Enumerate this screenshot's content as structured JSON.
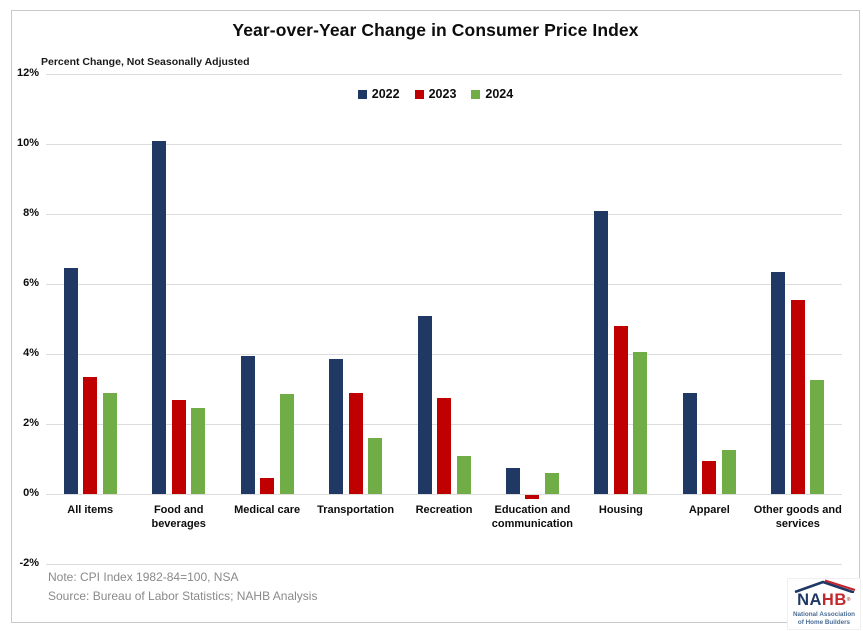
{
  "chart": {
    "title": "Year-over-Year Change in Consumer Price Index",
    "subtitle": "Percent Change, Not Seasonally Adjusted"
  },
  "chart_data": {
    "type": "bar",
    "title": "Year-over-Year Change in Consumer Price Index",
    "subtitle": "Percent Change, Not Seasonally Adjusted",
    "categories": [
      "All items",
      "Food and beverages",
      "Medical care",
      "Transportation",
      "Recreation",
      "Education and communication",
      "Housing",
      "Apparel",
      "Other goods and services"
    ],
    "series": [
      {
        "name": "2022",
        "color": "#1F3864",
        "values": [
          6.45,
          10.1,
          3.95,
          3.85,
          5.1,
          0.75,
          8.1,
          2.9,
          6.35
        ]
      },
      {
        "name": "2023",
        "color": "#C00000",
        "values": [
          3.35,
          2.7,
          0.45,
          2.9,
          2.75,
          -0.1,
          4.8,
          0.95,
          5.55
        ]
      },
      {
        "name": "2024",
        "color": "#70AD47",
        "values": [
          2.9,
          2.45,
          2.85,
          1.6,
          1.1,
          0.6,
          4.05,
          1.25,
          3.25
        ]
      }
    ],
    "ylabel": "Percent Change",
    "xlabel": "",
    "ylim": [
      -2,
      12
    ],
    "yticks": [
      12,
      10,
      8,
      6,
      4,
      2,
      0,
      -2
    ],
    "ytick_labels": [
      "12%",
      "10%",
      "8%",
      "6%",
      "4%",
      "2%",
      "0%",
      "-2%"
    ],
    "grid": true,
    "legend_position": "top-center"
  },
  "footer": {
    "note": "Note: CPI Index 1982-84=100, NSA",
    "source": "Source: Bureau of Labor Statistics; NAHB Analysis",
    "logo": {
      "name_left": "NA",
      "name_right": "HB",
      "reg_mark": "®",
      "org_line1": "National Association",
      "org_line2": "of Home Builders"
    }
  },
  "colors": {
    "series_2022": "#1F3864",
    "series_2023": "#C00000",
    "series_2024": "#70AD47",
    "gridline": "#dcdcdc",
    "note_text": "#8a8a8a",
    "frame_border": "#c9c9c9",
    "logo_blue": "#1F3864",
    "logo_red": "#C3272E"
  }
}
